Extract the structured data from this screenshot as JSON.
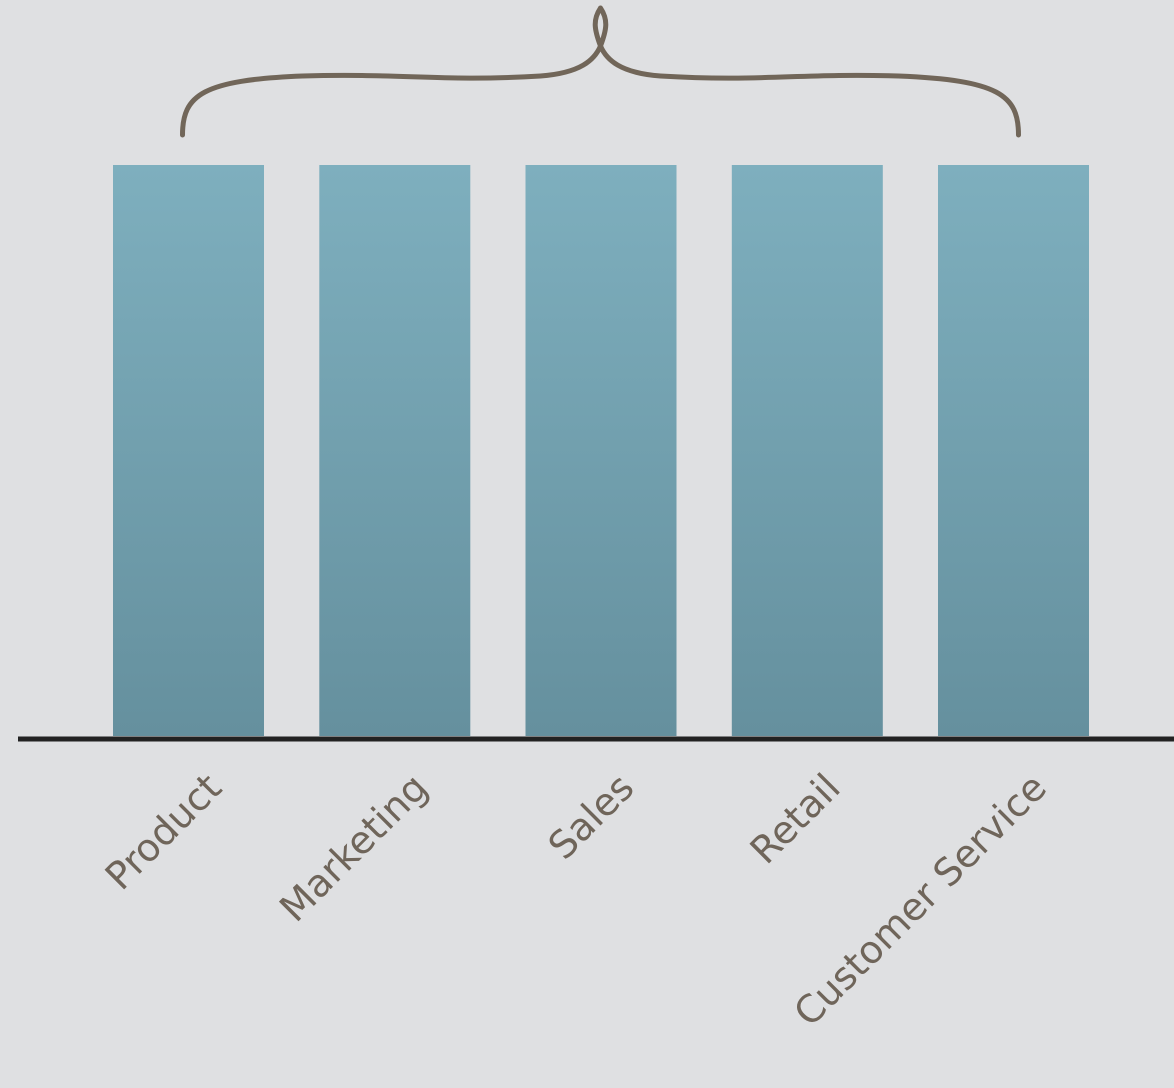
{
  "chart_data": {
    "type": "bar",
    "categories": [
      "Product",
      "Marketing",
      "Sales",
      "Retail",
      "Customer Service"
    ],
    "values": [
      1,
      1,
      1,
      1,
      1
    ],
    "title": "",
    "xlabel": "",
    "ylabel": "",
    "ylim": [
      0,
      1
    ],
    "grid": false,
    "legend": "none",
    "annotation": {
      "type": "brace",
      "spans": [
        "Product",
        "Customer Service"
      ]
    },
    "colors": {
      "background": "#dfe0e2",
      "bar_top": "#7eafbe",
      "bar_bottom": "#65909e",
      "axis": "#222222",
      "brace": "#716659",
      "label": "#6f655a"
    }
  }
}
